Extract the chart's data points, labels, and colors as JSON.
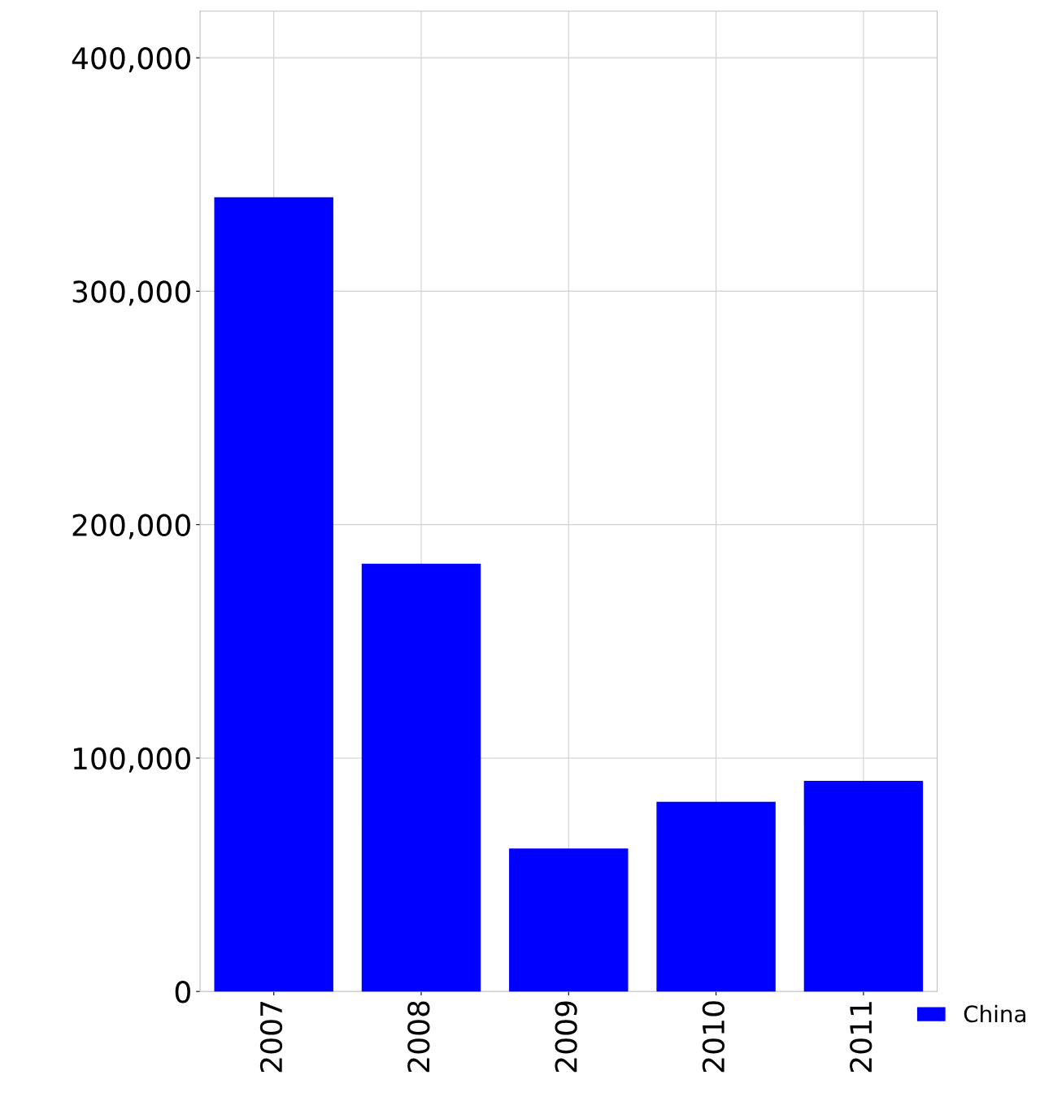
{
  "chart_data": {
    "type": "bar",
    "categories": [
      "2007",
      "2008",
      "2009",
      "2010",
      "2011"
    ],
    "series": [
      {
        "name": "China",
        "color": "#0000ff",
        "values": [
          340000,
          183000,
          61000,
          81000,
          90000
        ]
      }
    ],
    "ylim": [
      0,
      420000
    ],
    "yticks": [
      {
        "value": 0,
        "label": "0"
      },
      {
        "value": 100000,
        "label": "100,000"
      },
      {
        "value": 200000,
        "label": "200,000"
      },
      {
        "value": 300000,
        "label": "300,000"
      },
      {
        "value": 400000,
        "label": "400,000"
      }
    ],
    "grid": true,
    "legend": "bottom right"
  }
}
